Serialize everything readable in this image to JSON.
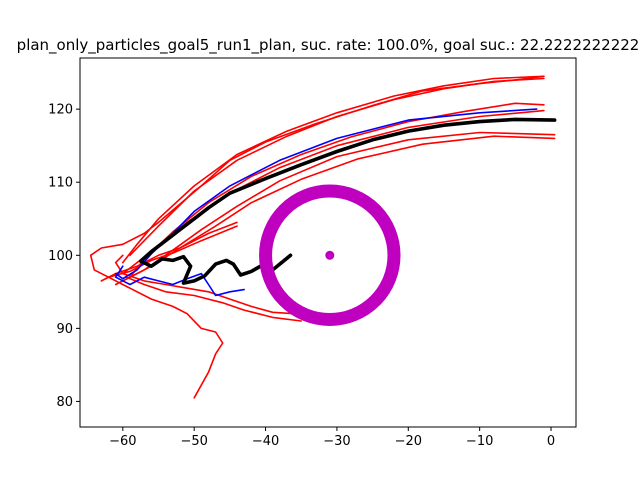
{
  "chart_data": {
    "type": "line",
    "title": "plan_only_particles_goal5_run1_plan, suc. rate: 100.0%, goal suc.: 22.2222222222",
    "xlabel": "",
    "ylabel": "",
    "xlim": [
      -66,
      3.5
    ],
    "ylim": [
      76.5,
      127
    ],
    "x_ticks": [
      -60,
      -50,
      -40,
      -30,
      -20,
      -10,
      0
    ],
    "y_ticks": [
      80,
      90,
      100,
      110,
      120
    ],
    "grid": false,
    "goal": {
      "center": [
        -31,
        100
      ],
      "radius": 9,
      "color": "#bf00bf"
    },
    "series": [
      {
        "color": "#ff0000",
        "width": 1.6,
        "points": [
          [
            -1,
            124.5
          ],
          [
            -8,
            124.2
          ],
          [
            -15,
            123.2
          ],
          [
            -22,
            121.8
          ],
          [
            -30,
            119.5
          ],
          [
            -37,
            117
          ],
          [
            -44,
            113.8
          ],
          [
            -50,
            109.5
          ],
          [
            -55,
            105
          ],
          [
            -58,
            101.5
          ],
          [
            -60,
            99
          ]
        ]
      },
      {
        "color": "#ff0000",
        "width": 1.6,
        "points": [
          [
            -1,
            124.2
          ],
          [
            -8,
            123.8
          ],
          [
            -15,
            122.8
          ],
          [
            -22,
            121.3
          ],
          [
            -30,
            119
          ],
          [
            -37,
            116.3
          ],
          [
            -44,
            113
          ],
          [
            -50,
            108.8
          ],
          [
            -55,
            104
          ],
          [
            -59,
            100
          ]
        ]
      },
      {
        "color": "#ff0000",
        "width": 1.6,
        "points": [
          [
            -1,
            120.6
          ],
          [
            -5,
            120.8
          ],
          [
            -12,
            119.7
          ],
          [
            -20,
            118.3
          ],
          [
            -28,
            116.2
          ],
          [
            -35,
            113.8
          ],
          [
            -42,
            110.8
          ],
          [
            -48,
            107.2
          ],
          [
            -53,
            103.2
          ],
          [
            -57,
            99.5
          ],
          [
            -59,
            97
          ]
        ]
      },
      {
        "color": "#ff0000",
        "width": 1.6,
        "points": [
          [
            -1,
            119.8
          ],
          [
            -10,
            119
          ],
          [
            -20,
            117.5
          ],
          [
            -30,
            115
          ],
          [
            -38,
            112
          ],
          [
            -45,
            108.5
          ],
          [
            -51,
            104.5
          ],
          [
            -56,
            100.5
          ],
          [
            -60,
            97.5
          ]
        ]
      },
      {
        "color": "#ff0000",
        "width": 1.6,
        "points": [
          [
            0.5,
            116
          ],
          [
            -8,
            116.3
          ],
          [
            -18,
            115.2
          ],
          [
            -27,
            113.2
          ],
          [
            -35,
            110.4
          ],
          [
            -42,
            107.2
          ],
          [
            -47,
            104
          ],
          [
            -52,
            101
          ],
          [
            -56,
            98.5
          ],
          [
            -60,
            96.5
          ]
        ]
      },
      {
        "color": "#ff0000",
        "width": 1.6,
        "points": [
          [
            0.5,
            116.5
          ],
          [
            -10,
            116.8
          ],
          [
            -20,
            115.8
          ],
          [
            -30,
            113.5
          ],
          [
            -38,
            110.2
          ],
          [
            -44,
            106.7
          ],
          [
            -49,
            103.5
          ],
          [
            -53,
            100.7
          ],
          [
            -57,
            98
          ],
          [
            -61,
            96
          ]
        ]
      },
      {
        "color": "#ff0000",
        "width": 1.6,
        "points": [
          [
            -44,
            104.5
          ],
          [
            -48,
            103
          ],
          [
            -52,
            101
          ],
          [
            -55,
            100
          ],
          [
            -58,
            98.5
          ],
          [
            -61,
            97.5
          ],
          [
            -63,
            96.5
          ]
        ]
      },
      {
        "color": "#ff0000",
        "width": 1.6,
        "points": [
          [
            -44,
            104
          ],
          [
            -49,
            102
          ],
          [
            -53,
            100.3
          ],
          [
            -56,
            99.3
          ],
          [
            -59,
            97.8
          ],
          [
            -62,
            97
          ]
        ]
      },
      {
        "color": "#ff0000",
        "width": 1.6,
        "points": [
          [
            -50,
            80.5
          ],
          [
            -48,
            84
          ],
          [
            -47,
            86.5
          ],
          [
            -46,
            88
          ],
          [
            -47,
            89.5
          ],
          [
            -49,
            90
          ],
          [
            -51,
            92
          ],
          [
            -53,
            93
          ],
          [
            -56,
            94
          ],
          [
            -59,
            95.5
          ],
          [
            -62,
            97
          ],
          [
            -64,
            98
          ],
          [
            -64.5,
            100
          ],
          [
            -63,
            101
          ],
          [
            -60,
            101.5
          ],
          [
            -57,
            103
          ],
          [
            -55,
            104.5
          ],
          [
            -52,
            107
          ],
          [
            -49,
            109.5
          ],
          [
            -45,
            113
          ],
          [
            -40,
            115.5
          ],
          [
            -33,
            118
          ],
          [
            -25,
            120.5
          ],
          [
            -18,
            122.5
          ],
          [
            -10,
            123.5
          ],
          [
            -5,
            124
          ],
          [
            -1,
            124.5
          ]
        ]
      },
      {
        "color": "#ff0000",
        "width": 1.6,
        "points": [
          [
            -36,
            92
          ],
          [
            -39,
            92.2
          ],
          [
            -42,
            93
          ],
          [
            -45,
            94
          ],
          [
            -48,
            95
          ],
          [
            -51,
            95.5
          ],
          [
            -54,
            96
          ],
          [
            -57,
            96.5
          ],
          [
            -60,
            97.5
          ],
          [
            -61,
            99
          ],
          [
            -60,
            100
          ]
        ]
      },
      {
        "color": "#ff0000",
        "width": 1.6,
        "points": [
          [
            -35,
            91
          ],
          [
            -39,
            91.5
          ],
          [
            -43,
            92.5
          ],
          [
            -46,
            93.5
          ],
          [
            -50,
            94.5
          ],
          [
            -54,
            95
          ],
          [
            -57,
            96
          ],
          [
            -59.5,
            97
          ]
        ]
      },
      {
        "color": "#0000ff",
        "width": 1.6,
        "points": [
          [
            -2,
            120
          ],
          [
            -10,
            119.5
          ],
          [
            -20,
            118.5
          ],
          [
            -30,
            116
          ],
          [
            -38,
            113
          ],
          [
            -45,
            109.5
          ],
          [
            -50,
            106
          ],
          [
            -53,
            103
          ],
          [
            -56,
            100.2
          ],
          [
            -58,
            98
          ],
          [
            -60,
            96.8
          ],
          [
            -61,
            97.5
          ]
        ]
      },
      {
        "color": "#0000ff",
        "width": 1.6,
        "points": [
          [
            -43,
            95.3
          ],
          [
            -45,
            95
          ],
          [
            -47,
            94.5
          ],
          [
            -48,
            96
          ],
          [
            -49,
            97.5
          ],
          [
            -51,
            96.8
          ],
          [
            -53,
            96
          ],
          [
            -55,
            96.5
          ],
          [
            -57,
            97
          ],
          [
            -59,
            96
          ],
          [
            -61,
            97
          ],
          [
            -60,
            98.5
          ]
        ]
      },
      {
        "color": "#000000",
        "width": 3.6,
        "points": [
          [
            0.5,
            118.5
          ],
          [
            -5,
            118.6
          ],
          [
            -10,
            118.3
          ],
          [
            -15,
            117.8
          ],
          [
            -20,
            117
          ],
          [
            -25,
            115.8
          ],
          [
            -30,
            114.2
          ],
          [
            -35,
            112.4
          ],
          [
            -40,
            110.5
          ],
          [
            -45,
            108.5
          ],
          [
            -48,
            106.5
          ],
          [
            -50,
            105
          ],
          [
            -52,
            103.5
          ],
          [
            -54,
            102
          ],
          [
            -56,
            100.5
          ],
          [
            -57.5,
            99.2
          ],
          [
            -56,
            98.5
          ],
          [
            -54.5,
            99.5
          ],
          [
            -53,
            99.3
          ],
          [
            -51.5,
            99.8
          ],
          [
            -50.5,
            98.5
          ],
          [
            -51.5,
            96.2
          ],
          [
            -50,
            96.5
          ],
          [
            -48.5,
            97.2
          ],
          [
            -47,
            98.8
          ],
          [
            -45.5,
            99.3
          ],
          [
            -44.5,
            98.8
          ],
          [
            -43.5,
            97.3
          ],
          [
            -42,
            97.8
          ],
          [
            -40,
            98.9
          ],
          [
            -39,
            98
          ],
          [
            -36.5,
            100
          ]
        ]
      }
    ]
  }
}
